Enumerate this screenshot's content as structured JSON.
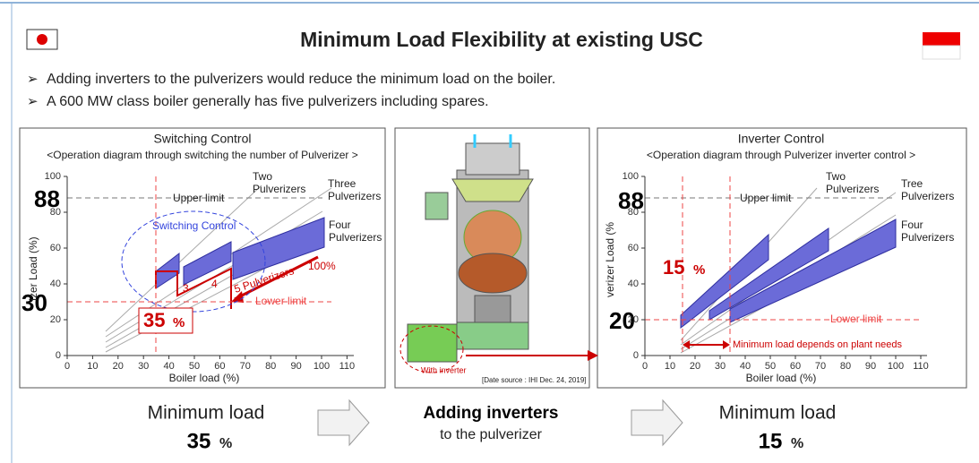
{
  "header": {
    "title": "Minimum Load Flexibility at existing USC",
    "bullets": [
      "Adding inverters to the pulverizers would reduce the minimum load on the boiler.",
      "A 600 MW class boiler generally has five pulverizers including spares."
    ]
  },
  "left_panel": {
    "title": "Switching Control",
    "subtitle": "<Operation diagram through switching the number of Pulverizer >",
    "y_label": "izer Load (%)",
    "x_label": "Boiler load (%)",
    "x_ticks": [
      "0",
      "10",
      "20",
      "30",
      "40",
      "50",
      "60",
      "70",
      "80",
      "90",
      "100",
      "110"
    ],
    "y_ticks": [
      "0",
      "20",
      "40",
      "60",
      "80",
      "100"
    ],
    "curves": {
      "two": [
        "Two",
        "Pulverizers"
      ],
      "three": [
        "Three",
        "Pulverizers"
      ],
      "four": [
        "Four",
        "Pulverizers"
      ]
    },
    "annotations": {
      "upper_limit": "Upper limit",
      "lower_limit": "Lower limit",
      "switching": "Switching Control",
      "step3": "3",
      "step4": "4",
      "step5": "5 Pulverizers",
      "full": "100%",
      "upper_value": "88",
      "lower_value": "30",
      "min_value": "35",
      "min_unit": "%"
    }
  },
  "middle_panel": {
    "note": "With inverter",
    "source": "[Date source : IHI Dec. 24, 2019]"
  },
  "right_panel": {
    "title": "Inverter Control",
    "subtitle": "<Operation diagram through Pulverizer inverter control >",
    "y_label": "verizer Load (%",
    "x_label": "Boiler load (%)",
    "x_ticks": [
      "0",
      "10",
      "20",
      "30",
      "40",
      "50",
      "60",
      "70",
      "80",
      "90",
      "100",
      "110"
    ],
    "y_ticks": [
      "0",
      "20",
      "40",
      "60",
      "80",
      "100"
    ],
    "curves": {
      "two": [
        "Two",
        "Pulverizers"
      ],
      "three": [
        "Tree",
        "Pulverizers"
      ],
      "four": [
        "Four",
        "Pulverizers"
      ]
    },
    "annotations": {
      "upper_limit": "Upper limit",
      "lower_limit": "Lower limit",
      "upper_value": "88",
      "lower_value": "20",
      "min_value": "15",
      "min_unit": "%",
      "needs": "Minimum load depends on plant needs"
    }
  },
  "footer": {
    "left": {
      "label": "Minimum load",
      "value": "35",
      "unit": "%"
    },
    "middle": {
      "title": "Adding inverters",
      "subtitle": "to the pulverizer"
    },
    "right": {
      "label": "Minimum load",
      "value": "15",
      "unit": "%"
    }
  }
}
